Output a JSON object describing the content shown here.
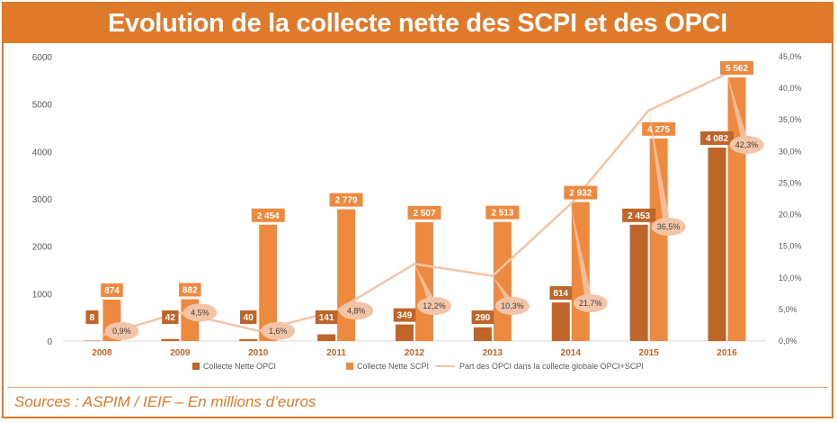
{
  "title": "Evolution de la collecte nette des SCPI et des OPCI",
  "source": "Sources : ASPIM / IEIF – En millions d’euros",
  "colors": {
    "accent": "#e07a2b",
    "opci": "#c0652a",
    "scpi": "#ee8a3f",
    "share": "#f2c4a8"
  },
  "chart_data": {
    "type": "bar",
    "title": "",
    "xlabel": "",
    "ylabel": "",
    "categories": [
      "2008",
      "2009",
      "2010",
      "2011",
      "2012",
      "2013",
      "2014",
      "2015",
      "2016"
    ],
    "ylim": [
      0,
      6000
    ],
    "yticks": [
      "0",
      "1000",
      "2000",
      "3000",
      "4000",
      "5000",
      "6000"
    ],
    "y2lim": [
      0,
      45
    ],
    "y2ticks": [
      "0,0%",
      "5,0%",
      "10,0%",
      "15,0%",
      "20,0%",
      "25,0%",
      "30,0%",
      "35,0%",
      "40,0%",
      "45,0%"
    ],
    "series": [
      {
        "name": "Collecte Nette OPCI",
        "type": "bar",
        "values": [
          8,
          42,
          40,
          141,
          349,
          290,
          814,
          2453,
          4082
        ],
        "labels": [
          "8",
          "42",
          "40",
          "141",
          "349",
          "290",
          "814",
          "2 453",
          "4 082"
        ]
      },
      {
        "name": "Collecte Nette SCPI",
        "type": "bar",
        "values": [
          874,
          882,
          2454,
          2779,
          2507,
          2513,
          2932,
          4275,
          5562
        ],
        "labels": [
          "874",
          "882",
          "2 454",
          "2 779",
          "2 507",
          "2 513",
          "2 932",
          "4 275",
          "5 562"
        ]
      },
      {
        "name": "Part des OPCI dans la collecte globale OPCI+SCPI",
        "type": "line",
        "axis": "right",
        "values": [
          0.9,
          4.5,
          1.6,
          4.8,
          12.2,
          10.3,
          21.7,
          36.5,
          42.3
        ],
        "labels": [
          "0,9%",
          "4,5%",
          "1,6%",
          "4,8%",
          "12,2%",
          "10,3%",
          "21,7%",
          "36,5%",
          "42,3%"
        ]
      }
    ],
    "legend": "bottom",
    "grid": false
  }
}
